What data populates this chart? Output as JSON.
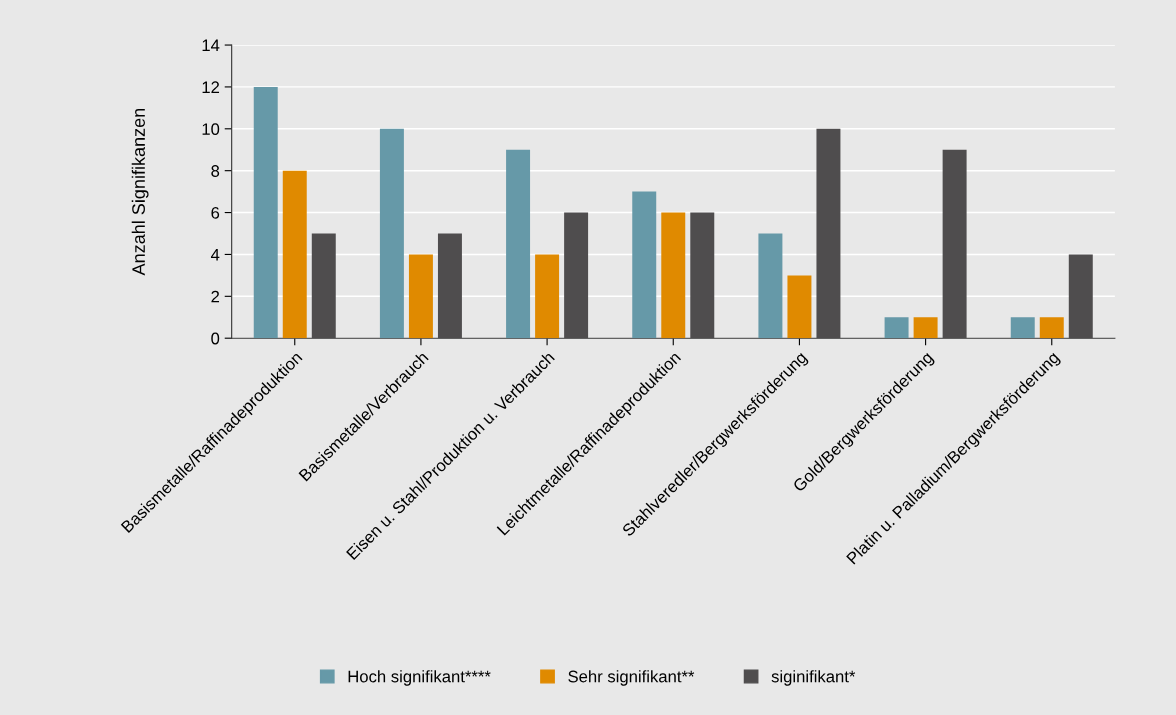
{
  "chart_data": {
    "type": "bar",
    "ylabel": "Anzahl Signifikanzen",
    "categories": [
      "Basismetalle/Raffinadeproduktion",
      "Basismetalle/Verbrauch",
      "Eisen u. Stahl/Produktion u. Verbrauch",
      "Leichtmetalle/Raffinadeproduktion",
      "Stahlveredler/Bergwerksförderung",
      "Gold/Bergwerksförderung",
      "Platin u. Palladium/Bergwerksförderung"
    ],
    "series": [
      {
        "name": "Hoch signifikant****",
        "color": "#6699a8",
        "values": [
          12,
          10,
          9,
          7,
          5,
          1,
          1
        ]
      },
      {
        "name": "Sehr signifikant**",
        "color": "#e08a00",
        "values": [
          8,
          4,
          4,
          6,
          3,
          1,
          1
        ]
      },
      {
        "name": "siginifikant*",
        "color": "#4f4d4e",
        "values": [
          5,
          5,
          6,
          6,
          10,
          9,
          4
        ]
      }
    ],
    "ylim": [
      0,
      14
    ],
    "yticks": [
      0,
      2,
      4,
      6,
      8,
      10,
      12,
      14
    ],
    "grid": "y",
    "legend": "bottom"
  }
}
